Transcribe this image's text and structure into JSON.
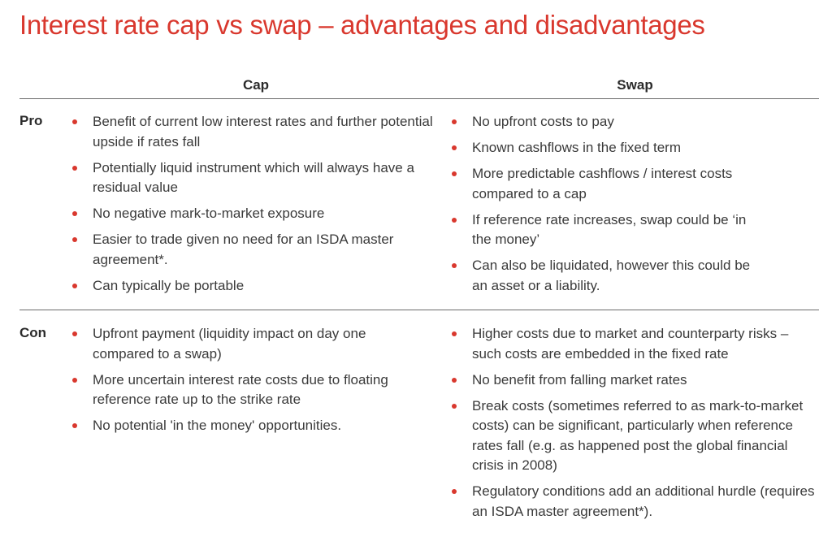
{
  "title": "Interest rate cap vs swap – advantages and disadvantages",
  "columns": {
    "cap": "Cap",
    "swap": "Swap"
  },
  "rows": {
    "pro": {
      "label": "Pro",
      "cap": [
        "Benefit of current low interest rates and further potential upside if rates fall",
        "Potentially liquid instrument which will always have a residual value",
        "No negative mark-to-market exposure",
        "Easier to trade given no need for an ISDA master agreement*.",
        "Can typically be portable"
      ],
      "swap": [
        "No upfront costs to pay",
        "Known cashflows in the fixed term",
        "More predictable cashflows / interest costs compared to a cap",
        "If reference rate increases, swap could be ‘in the money’",
        "Can also be liquidated, however this could be an asset or a liability."
      ]
    },
    "con": {
      "label": "Con",
      "cap": [
        "Upfront payment (liquidity impact on day one compared to a swap)",
        "More uncertain interest rate costs due to floating reference rate up to the strike rate",
        "No potential 'in the money' opportunities."
      ],
      "swap": [
        "Higher costs due to market and counterparty risks – such costs are embedded in the fixed rate",
        "No benefit from falling market rates",
        "Break costs (sometimes referred to as mark-to-market costs) can be significant, particularly when reference rates fall (e.g. as happened post the global financial crisis in 2008)",
        "Regulatory conditions add an additional hurdle (requires an ISDA master agreement*)."
      ]
    }
  }
}
